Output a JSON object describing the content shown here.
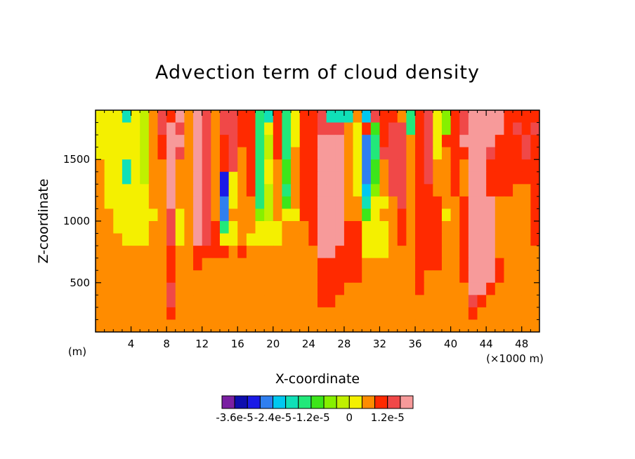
{
  "chart_data": {
    "type": "heatmap",
    "title": "Advection term of cloud density",
    "xlabel": "X-coordinate",
    "ylabel": "Z-coordinate",
    "x_unit_left": "(m)",
    "x_unit_right": "(×1000 m)",
    "xlim": [
      0,
      50
    ],
    "ylim": [
      100,
      1900
    ],
    "x_ticks": [
      4,
      8,
      12,
      16,
      20,
      24,
      28,
      32,
      36,
      40,
      44,
      48
    ],
    "x_tick_labels": [
      "4",
      "8",
      "12",
      "16",
      "20",
      "24",
      "28",
      "32",
      "36",
      "40",
      "44",
      "48"
    ],
    "y_ticks": [
      500,
      1000,
      1500
    ],
    "y_tick_labels": [
      "500",
      "1000",
      "1500"
    ],
    "colorbar": {
      "colors": [
        "#7a1fa2",
        "#0d0dae",
        "#1a1ae6",
        "#2f7ff0",
        "#00c8f0",
        "#10e0b8",
        "#22e87a",
        "#3ce61a",
        "#86f000",
        "#c0f000",
        "#f4f000",
        "#ff8c00",
        "#ff2a00",
        "#f04848",
        "#f79a9a"
      ],
      "labels": [
        "-3.6e-5",
        "-2.4e-5",
        "-1.2e-5",
        "0",
        "1.2e-5"
      ],
      "label_index": [
        1,
        4,
        7,
        10,
        13
      ],
      "above_max_color": "#ffffff"
    },
    "field": {
      "nx": 50,
      "ny": 18,
      "level_grid": [
        "AAA5A9BDCEBEDBDDCC65C6ACCD555B4DCCB6CDA8CDEEEECCCC",
        "AAAAA9BDEDBEDBDDCC6AC6ACCDDDBAC7CDD6CDA8CDEEEECDCD",
        "AAAAA9BCEEBEDBCDCC69C6ACCEEEBA36CDDBCDACCEEEECCCDC",
        "AAAAA9BCEDBEDBCDBC69C6BCCEEEBA36DDDBCDABCCEEDCCCDC",
        "BAA5A9BBEBBEDBCDBC6AB7BCCEEEBA37BDDBCDBBCBEECCCCCC",
        "BAA5A9BBEBBEDB2ABC6AB7BCCEEEBA37BDDBCDBBCBEECCCCCC",
        "BAAAAABBEBBEDB2ABC69B6BCCEEEBA48BDDBCCBBCBEECCCBBC",
        "BAAAAABBEBBEDB3ABB69B7BCCEEEBB5AABDBCCCBBCEEEBBBBC",
        "BBAAAAABDABEDB3BBB89BAACCEEEBB7ABBCBCCCABCEEEBBBBC",
        "BBAAAABBDABEDC6ABBAAABBBCEEECCAAABCBCCCBBCEEEBBBBC",
        "BBBAAABBDABEDCAABAAAABBBCEEECCAAABCBCCCBBCEEEBBBBC",
        "BBBBBBBBCBBCCCCBCBBBBBBBBEECCCAAABBBCCCBBCEEEBBBBB",
        "BBBBBBBBCBBCBBBBBBBBBBBBBCCCCCBBBBBBCCCBBCEEECBBBB",
        "BBBBBBBBCBBBBBBBBBBBBBBBBCCCCCBBBBBBCBBBBCEEECBBBB",
        "BBBBBBBBDBBBBBBBBBBBBBBBBCCCBBBBBBBBCBBBBBEECBBBBB",
        "BBBBBBBBDBBBBBBBBBBBBBBBBCCBBBBBBBBBBBBBBBDCBBBBBB",
        "BBBBBBBBCBBBBBBBBBBBBBBBBBBBBBBBBBBBBBBBBBCBBBBBBB",
        "BBBBBBBBBBBBBBBBBBBBBBBBBBBBBBBBBBBBBBBBBBBBBBBBBB"
      ],
      "level_key": "0-9 and A-E index colorbar colors 0-14; F = above max (white)"
    }
  }
}
